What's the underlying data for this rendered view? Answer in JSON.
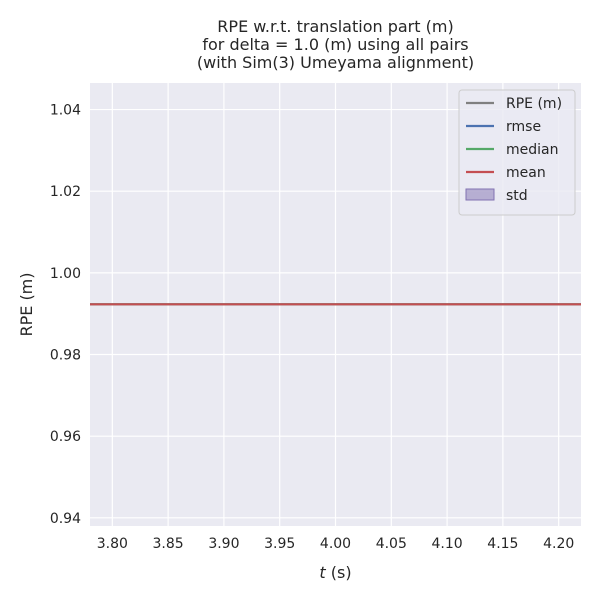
{
  "chart_data": {
    "type": "line",
    "title": [
      "RPE w.r.t. translation part (m)",
      "for delta = 1.0 (m) using all pairs",
      "(with Sim(3) Umeyama alignment)"
    ],
    "xlabel_italic": "t",
    "xlabel_rest": " (s)",
    "ylabel": "RPE (m)",
    "xlim": [
      3.78,
      4.22
    ],
    "ylim": [
      0.938,
      1.0465
    ],
    "x_ticks": [
      "3.80",
      "3.85",
      "3.90",
      "3.95",
      "4.00",
      "4.05",
      "4.10",
      "4.15",
      "4.20"
    ],
    "y_ticks": [
      "0.94",
      "0.96",
      "0.98",
      "1.00",
      "1.02",
      "1.04"
    ],
    "grid": true,
    "legend_position": "top-right",
    "series": [
      {
        "name": "RPE (m)",
        "kind": "line",
        "color": "#808080",
        "values": [
          0.9923
        ]
      },
      {
        "name": "rmse",
        "kind": "hline",
        "color": "#4c72b0",
        "value": 0.9923
      },
      {
        "name": "median",
        "kind": "hline",
        "color": "#55a868",
        "value": 0.9923
      },
      {
        "name": "mean",
        "kind": "hline",
        "color": "#c44e52",
        "value": 0.9923
      },
      {
        "name": "std",
        "kind": "band",
        "color": "#8172b2",
        "range": [
          0.9923,
          0.9923
        ]
      }
    ],
    "colors": {
      "plot_background": "#eaeaf2",
      "grid": "#ffffff"
    }
  }
}
